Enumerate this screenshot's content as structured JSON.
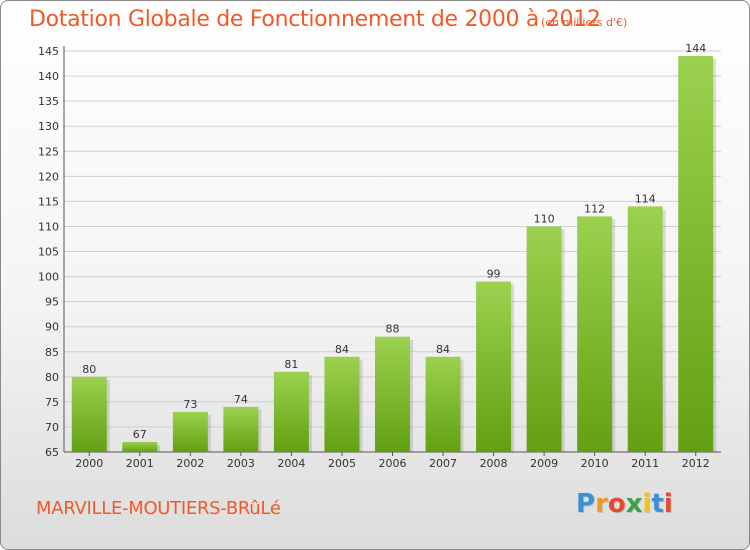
{
  "header": {
    "title": "Dotation Globale de Fonctionnement de 2000 à 2012",
    "unit": "(en milliers d'€)"
  },
  "footer": {
    "place": "MARVILLE-MOUTIERS-BRûLé",
    "logo": [
      "P",
      "r",
      "o",
      "x",
      "i",
      "t",
      "i"
    ]
  },
  "chart_data": {
    "type": "bar",
    "categories": [
      "2000",
      "2001",
      "2002",
      "2003",
      "2004",
      "2005",
      "2006",
      "2007",
      "2008",
      "2009",
      "2010",
      "2011",
      "2012"
    ],
    "values": [
      80,
      67,
      73,
      74,
      81,
      84,
      88,
      84,
      99,
      110,
      112,
      114,
      144
    ],
    "ylim": [
      65,
      145
    ],
    "yticks": [
      65,
      70,
      75,
      80,
      85,
      90,
      95,
      100,
      105,
      110,
      115,
      120,
      125,
      130,
      135,
      140,
      145
    ],
    "grid": true,
    "colors": {
      "bar_light": "#9bd14f",
      "bar_dark": "#62a012",
      "grid": "#cfcfcf",
      "text": "#333333"
    }
  }
}
